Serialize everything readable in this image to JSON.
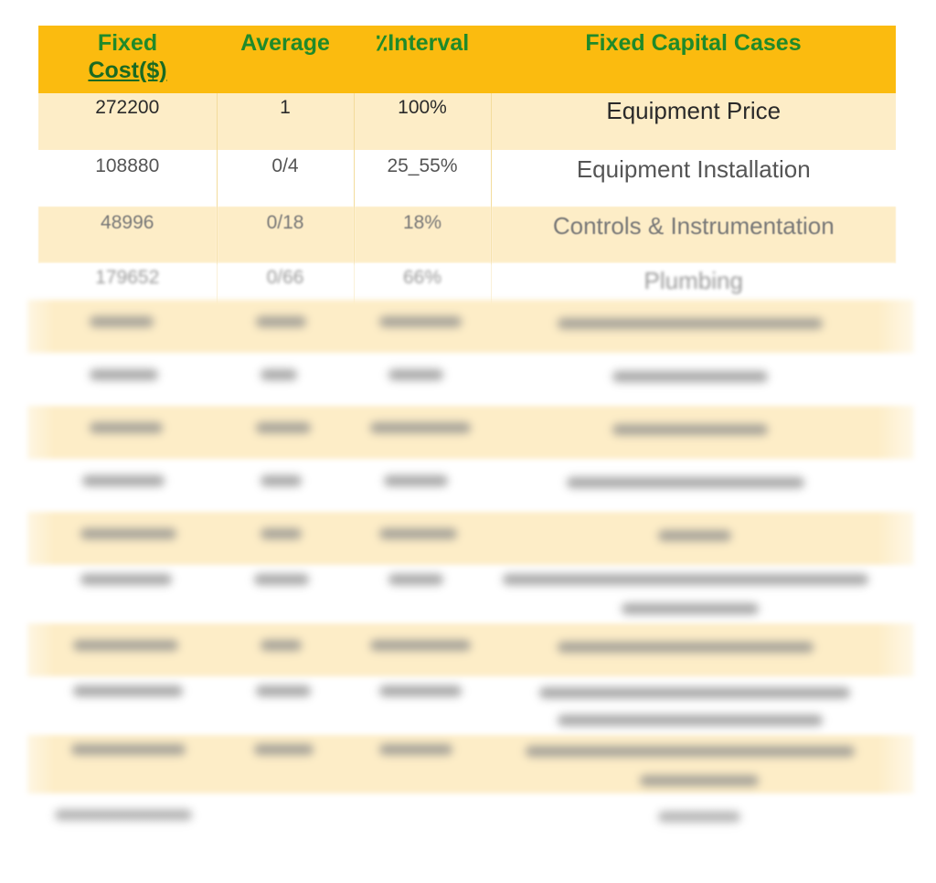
{
  "table": {
    "headers": {
      "fixed_cost_line1": "Fixed",
      "fixed_cost_line2": "Cost($)",
      "average": "Average",
      "interval": "٪Interval",
      "cases": "Fixed Capital Cases"
    },
    "rows": [
      {
        "cost": "272200",
        "average": "1",
        "interval": "100%",
        "case": "Equipment Price"
      },
      {
        "cost": "108880",
        "average": "0/4",
        "interval": "25_55%",
        "case": "Equipment Installation"
      },
      {
        "cost": "48996",
        "average": "0/18",
        "interval": "18%",
        "case": "Controls & Instrumentation"
      },
      {
        "cost": "179652",
        "average": "0/66",
        "interval": "66%",
        "case": "Plumbing"
      }
    ]
  }
}
